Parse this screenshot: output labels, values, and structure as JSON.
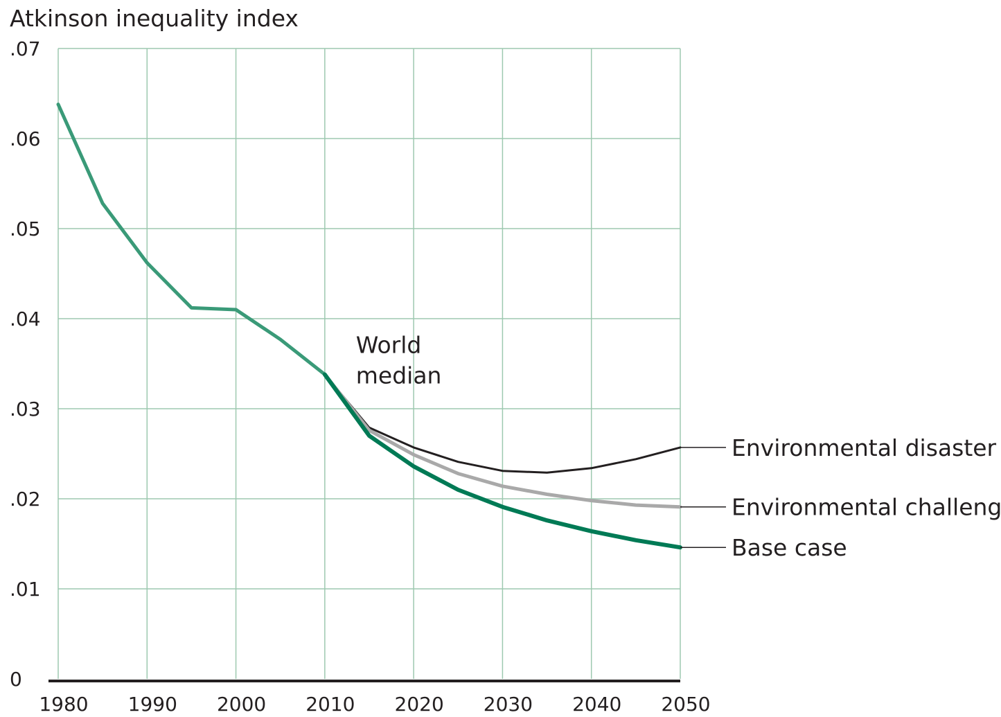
{
  "chart_data": {
    "type": "line",
    "ylabel": "Atkinson inequality index",
    "xlim": [
      1980,
      2050
    ],
    "ylim": [
      0,
      0.07
    ],
    "x_ticks": [
      {
        "value": 1980,
        "label": "1980"
      },
      {
        "value": 1990,
        "label": "1990"
      },
      {
        "value": 2000,
        "label": "2000"
      },
      {
        "value": 2010,
        "label": "2010"
      },
      {
        "value": 2020,
        "label": "2020"
      },
      {
        "value": 2030,
        "label": "2030"
      },
      {
        "value": 2040,
        "label": "2040"
      },
      {
        "value": 2050,
        "label": "2050"
      }
    ],
    "y_ticks": [
      {
        "value": 0,
        "label": "0"
      },
      {
        "value": 0.01,
        "label": ".01"
      },
      {
        "value": 0.02,
        "label": ".02"
      },
      {
        "value": 0.03,
        "label": ".03"
      },
      {
        "value": 0.04,
        "label": ".04"
      },
      {
        "value": 0.05,
        "label": ".05"
      },
      {
        "value": 0.06,
        "label": ".06"
      },
      {
        "value": 0.07,
        "label": ".07"
      }
    ],
    "grid": true,
    "annotation": {
      "lines": [
        "World",
        "median"
      ],
      "x": 2013.5,
      "y": 0.0345
    },
    "historical": {
      "color": "#3a9a78",
      "x": [
        1980,
        1985,
        1990,
        1995,
        2000,
        2005,
        2010
      ],
      "y": [
        0.0638,
        0.0528,
        0.0462,
        0.0412,
        0.041,
        0.0377,
        0.0338
      ]
    },
    "series": [
      {
        "name": "Environmental disaster",
        "color": "#231f20",
        "width": 3,
        "x": [
          2010,
          2015,
          2020,
          2025,
          2030,
          2035,
          2040,
          2045,
          2050
        ],
        "y": [
          0.0338,
          0.0279,
          0.0257,
          0.0241,
          0.0231,
          0.0229,
          0.0234,
          0.0244,
          0.0257
        ]
      },
      {
        "name": "Environmental challenge",
        "color": "#a9a9a9",
        "width": 5,
        "x": [
          2010,
          2015,
          2020,
          2025,
          2030,
          2035,
          2040,
          2045,
          2050
        ],
        "y": [
          0.0338,
          0.0276,
          0.0249,
          0.0228,
          0.0214,
          0.0205,
          0.0198,
          0.0193,
          0.0191
        ]
      },
      {
        "name": "Base case",
        "color": "#007a55",
        "width": 6,
        "x": [
          2010,
          2015,
          2020,
          2025,
          2030,
          2035,
          2040,
          2045,
          2050
        ],
        "y": [
          0.0338,
          0.027,
          0.0236,
          0.021,
          0.0191,
          0.0176,
          0.0164,
          0.0154,
          0.0146
        ]
      }
    ]
  }
}
